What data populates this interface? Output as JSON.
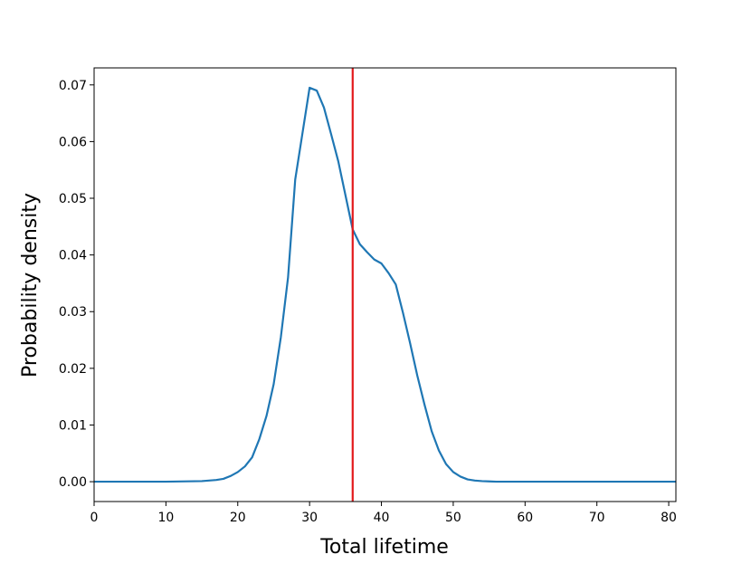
{
  "chart_data": {
    "type": "line",
    "title": "",
    "xlabel": "Total lifetime",
    "ylabel": "Probability density",
    "xlim": [
      0,
      81
    ],
    "ylim": [
      -0.0035,
      0.073
    ],
    "xticks": [
      0,
      10,
      20,
      30,
      40,
      50,
      60,
      70,
      80
    ],
    "xtick_labels": [
      "0",
      "10",
      "20",
      "30",
      "40",
      "50",
      "60",
      "70",
      "80"
    ],
    "yticks": [
      0,
      0.01,
      0.02,
      0.03,
      0.04,
      0.05,
      0.06,
      0.07
    ],
    "ytick_labels": [
      "0.00",
      "0.01",
      "0.02",
      "0.03",
      "0.04",
      "0.05",
      "0.06",
      "0.07"
    ],
    "grid": false,
    "series": [
      {
        "color": "#1f77b4",
        "x": [
          0,
          10,
          15,
          16,
          17,
          18,
          19,
          20,
          21,
          22,
          23,
          24,
          25,
          26,
          27,
          28,
          29,
          30,
          31,
          32,
          33,
          34,
          35,
          36,
          37,
          38,
          39,
          40,
          41,
          42,
          43,
          44,
          45,
          46,
          47,
          48,
          49,
          50,
          51,
          52,
          53,
          54,
          55,
          56,
          58,
          60,
          70,
          81
        ],
        "y": [
          0,
          0,
          0.0001,
          0.0002,
          0.0003,
          0.0005,
          0.001,
          0.0017,
          0.0027,
          0.0043,
          0.0075,
          0.0116,
          0.0172,
          0.0255,
          0.036,
          0.0533,
          0.0614,
          0.0695,
          0.069,
          0.066,
          0.0613,
          0.0565,
          0.0505,
          0.0445,
          0.0419,
          0.0405,
          0.0392,
          0.0385,
          0.0368,
          0.0348,
          0.0298,
          0.0244,
          0.0187,
          0.0136,
          0.0089,
          0.0055,
          0.0031,
          0.0017,
          0.0009,
          0.0004,
          0.0002,
          0.0001,
          5e-05,
          0,
          0,
          0,
          0,
          0
        ]
      }
    ],
    "vline": {
      "x": 36,
      "color": "#e31a1c"
    }
  }
}
